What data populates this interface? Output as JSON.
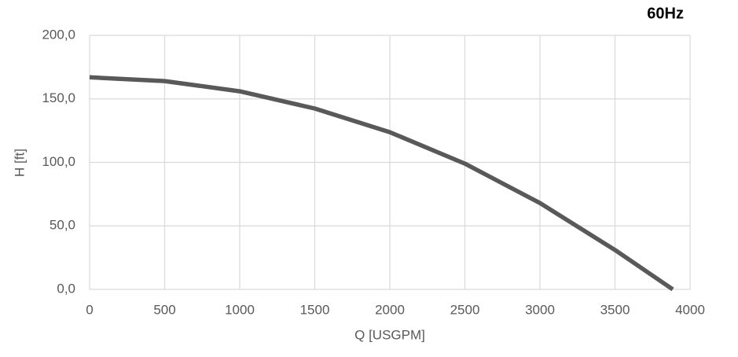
{
  "chart_data": {
    "type": "line",
    "title": "60Hz",
    "x_label": "Q [USGPM]",
    "y_label": "H [ft]",
    "x": [
      0,
      500,
      1000,
      1500,
      2000,
      2500,
      3000,
      3500,
      3885
    ],
    "series": [
      {
        "color": "#595959",
        "values": [
          167,
          164,
          156,
          142.4,
          123.8,
          99,
          68,
          31,
          0
        ]
      }
    ],
    "xlim": [
      0,
      4000
    ],
    "xticks": [
      0,
      500,
      1000,
      1500,
      2000,
      2500,
      3000,
      3500,
      4000
    ],
    "ylim": [
      0,
      200
    ],
    "yticks": [
      {
        "value": 0,
        "label": "0,0"
      },
      {
        "value": 50,
        "label": "50,0"
      },
      {
        "value": 100,
        "label": "100,0"
      },
      {
        "value": 150,
        "label": "150,0"
      },
      {
        "value": 200,
        "label": "200,0"
      }
    ],
    "grid": true
  }
}
